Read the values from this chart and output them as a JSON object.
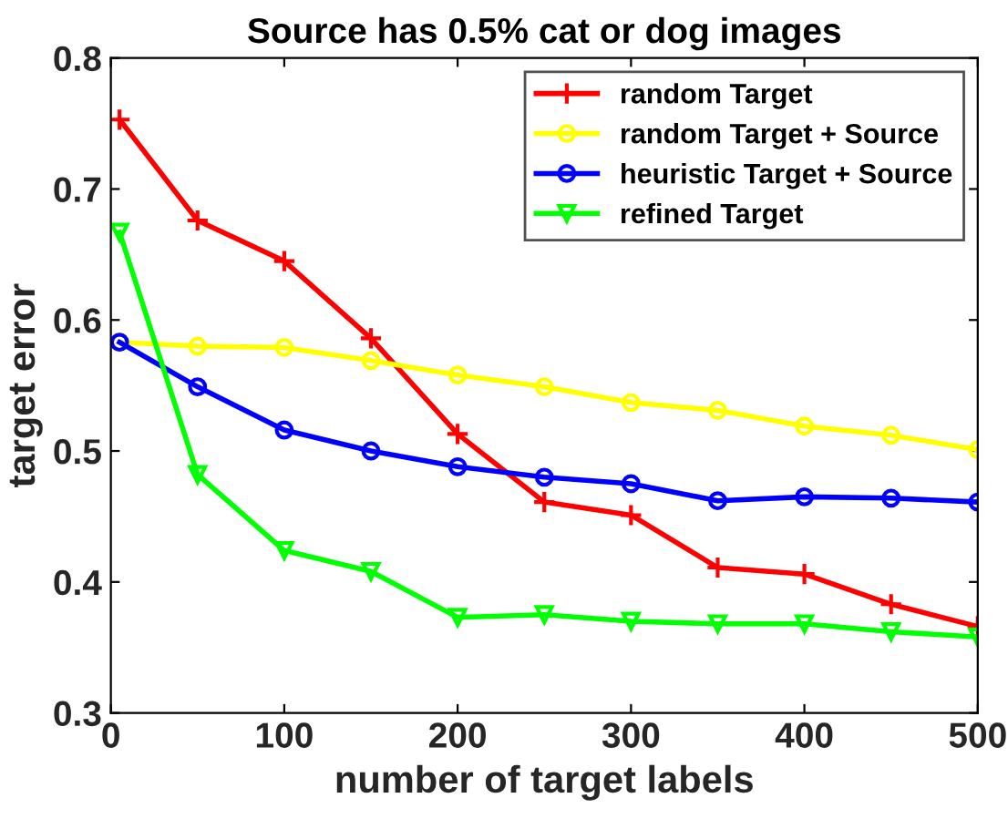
{
  "chart_data": {
    "type": "line",
    "title": "Source has 0.5% cat or dog images",
    "xlabel": "number of target labels",
    "ylabel": "target error",
    "x": [
      5,
      50,
      100,
      150,
      200,
      250,
      300,
      350,
      400,
      450,
      500
    ],
    "series": [
      {
        "name": "random Target",
        "color": "#ff0000",
        "marker": "cross",
        "values": [
          0.753,
          0.676,
          0.645,
          0.586,
          0.513,
          0.461,
          0.451,
          0.411,
          0.406,
          0.383,
          0.366
        ]
      },
      {
        "name": "random Target + Source",
        "color": "#ffff00",
        "marker": "circle",
        "values": [
          0.583,
          0.58,
          0.579,
          0.569,
          0.558,
          0.549,
          0.537,
          0.531,
          0.519,
          0.512,
          0.501
        ]
      },
      {
        "name": "heuristic Target + Source",
        "color": "#0000ff",
        "marker": "circle",
        "values": [
          0.583,
          0.549,
          0.516,
          0.5,
          0.488,
          0.48,
          0.475,
          0.462,
          0.465,
          0.464,
          0.461
        ]
      },
      {
        "name": "refined Target",
        "color": "#00ff00",
        "marker": "triangle",
        "values": [
          0.667,
          0.482,
          0.424,
          0.408,
          0.373,
          0.375,
          0.37,
          0.368,
          0.368,
          0.362,
          0.358
        ]
      }
    ],
    "xlim": [
      0,
      500
    ],
    "xticks": [
      0,
      100,
      200,
      300,
      400,
      500
    ],
    "ylim": [
      0.3,
      0.8
    ],
    "yticks": [
      0.3,
      0.4,
      0.5,
      0.6,
      0.7,
      0.8
    ],
    "grid": false,
    "legend": "top right",
    "line_style": "solid"
  }
}
